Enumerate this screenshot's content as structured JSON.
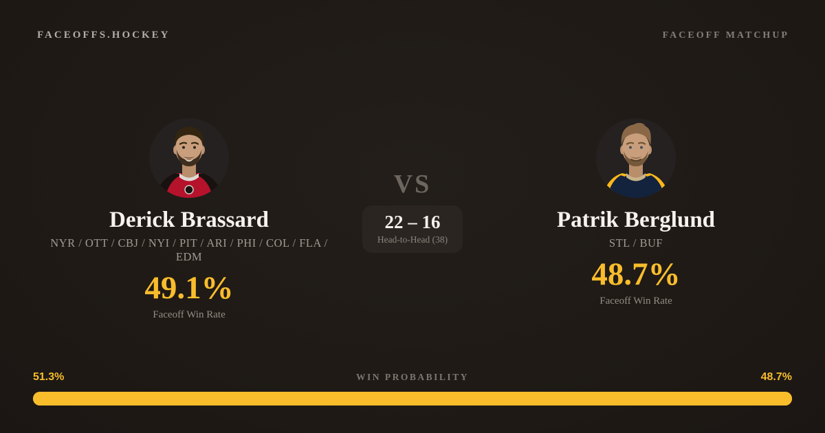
{
  "header": {
    "brand": "FACEOFFS.HOCKEY",
    "page_label": "FACEOFF MATCHUP"
  },
  "matchup": {
    "vs_label": "VS",
    "head_to_head_score": "22 – 16",
    "head_to_head_label": "Head-to-Head (38)"
  },
  "players": [
    {
      "name": "Derick Brassard",
      "teams": "NYR / OTT / CBJ / NYI / PIT / ARI / PHI / COL / FLA / EDM",
      "faceoff_win_rate": "49.1%",
      "stat_label": "Faceoff Win Rate"
    },
    {
      "name": "Patrik Berglund",
      "teams": "STL / BUF",
      "faceoff_win_rate": "48.7%",
      "stat_label": "Faceoff Win Rate"
    }
  ],
  "win_probability": {
    "label": "WIN PROBABILITY",
    "left": {
      "pct_label": "51.3%",
      "value": 51.3
    },
    "right": {
      "pct_label": "48.7%",
      "value": 48.7
    }
  },
  "colors": {
    "background": "#1e1915",
    "accent_gold": "#f9bd2c",
    "text_primary": "#f6f2ec",
    "text_muted": "#a29a92",
    "panel": "#2a2521"
  }
}
